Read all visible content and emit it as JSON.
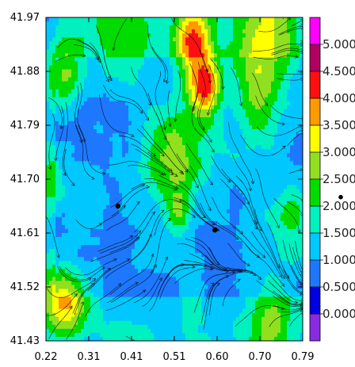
{
  "chart_data": {
    "type": "heatmap",
    "title": "",
    "xlabel": "",
    "ylabel": "",
    "x_ticks": [
      "0.22",
      "0.31",
      "0.41",
      "0.51",
      "0.60",
      "0.70",
      "0.79"
    ],
    "y_ticks": [
      "41.97",
      "41.88",
      "41.79",
      "41.70",
      "41.61",
      "41.52",
      "41.43"
    ],
    "xlim": [
      0.22,
      0.79
    ],
    "ylim": [
      41.43,
      41.97
    ],
    "colorbar": {
      "labels": [
        "0.000",
        "0.500",
        "1.000",
        "1.500",
        "2.000",
        "2.500",
        "3.000",
        "3.500",
        "4.000",
        "4.500",
        "5.000"
      ],
      "colors": [
        "#8a2be2",
        "#0000e0",
        "#1e78ff",
        "#00c8ff",
        "#00f0c0",
        "#00dc00",
        "#90e020",
        "#ffff00",
        "#ff9a00",
        "#ff1010",
        "#b00060",
        "#ff00ff"
      ]
    },
    "overlay": "streamlines",
    "markers": [
      {
        "x": 0.38,
        "y": 41.655
      },
      {
        "x": 0.595,
        "y": 41.615
      }
    ],
    "outside_marker": {
      "y": 41.67
    }
  }
}
